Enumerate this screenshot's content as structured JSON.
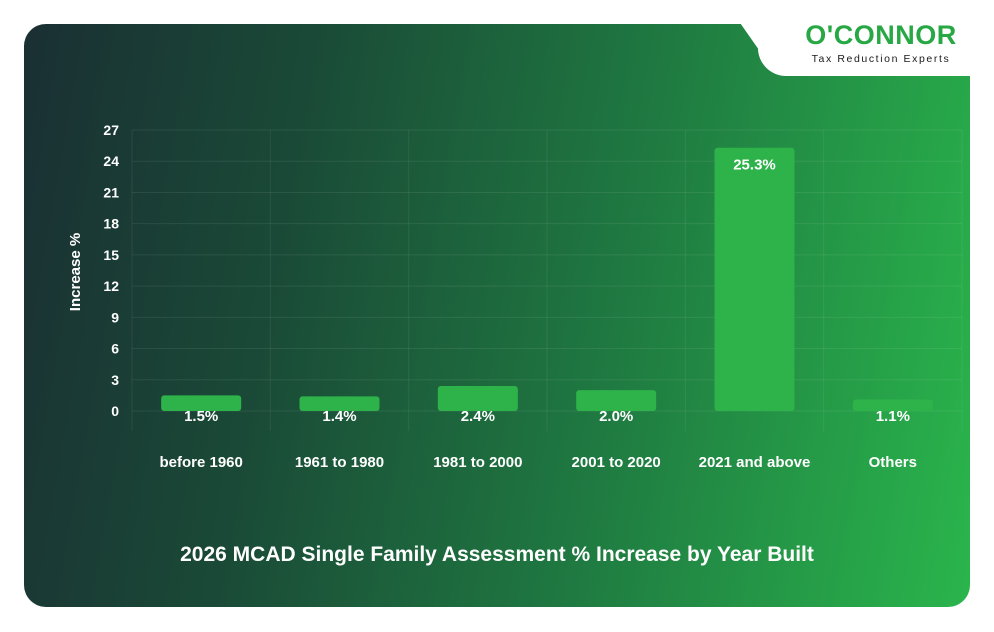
{
  "brand": {
    "name": "O'CONNOR",
    "tagline": "Tax Reduction Experts"
  },
  "chart_data": {
    "type": "bar",
    "title": "2026 MCAD Single Family Assessment % Increase by Year Built",
    "ylabel": "Increase %",
    "xlabel": "",
    "categories": [
      "before 1960",
      "1961 to 1980",
      "1981 to 2000",
      "2001 to 2020",
      "2021 and above",
      "Others"
    ],
    "values": [
      1.5,
      1.4,
      2.4,
      2.0,
      25.3,
      1.1
    ],
    "value_labels": [
      "1.5%",
      "1.4%",
      "2.4%",
      "2.0%",
      "25.3%",
      "1.1%"
    ],
    "yticks": [
      0,
      3,
      6,
      9,
      12,
      15,
      18,
      21,
      24,
      27
    ],
    "ylim": [
      0,
      27
    ],
    "grid": true,
    "bar_color": "#2db34a"
  }
}
